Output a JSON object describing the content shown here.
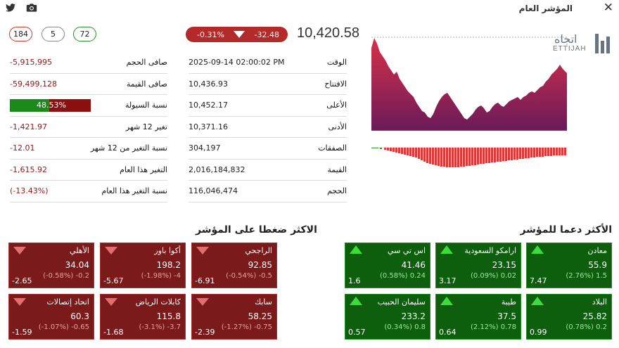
{
  "header": {
    "title": "المؤشر العام"
  },
  "pills": [
    "184",
    "5",
    "72"
  ],
  "summary": {
    "change_pct": "-0.31%",
    "change": "-32.48",
    "price": "10,420.58"
  },
  "details": [
    {
      "label": "الوقت",
      "value": "2025-09-14  02:00:02 PM"
    },
    {
      "label": "الافتتاح",
      "value": "10,436.93"
    },
    {
      "label": "الأعلى",
      "value": "10,452.17"
    },
    {
      "label": "الأدنى",
      "value": "10,371.16"
    },
    {
      "label": "الصفقات",
      "value": "304,197"
    },
    {
      "label": "القيمة",
      "value": "2,016,184,832"
    },
    {
      "label": "الحجم",
      "value": "116,046,474"
    }
  ],
  "stats": [
    {
      "label": "صافى الحجم",
      "value": "-5,915,995"
    },
    {
      "label": "صافى القيمة",
      "value": "-59,499,128"
    },
    {
      "label": "نسبة السيولة",
      "value": "48.53%"
    },
    {
      "label": "تغير 12 شهر",
      "value": "-1,421.97"
    },
    {
      "label": "نسبة التغير من 12 شهر",
      "value": "-12.01"
    },
    {
      "label": "التغير هذا العام",
      "value": "-1,615.92"
    },
    {
      "label": "نسبة التغير هذا العام",
      "value": "(-13.43%)"
    }
  ],
  "liquidity_ratio": 0.4853,
  "logo": {
    "ar": "اتجاه",
    "en": "ETTIJAH"
  },
  "sections": {
    "pressure": "الاكثر ضغطا على المؤشر",
    "support": "الأكثر دعما للمؤشر"
  },
  "pressure": [
    {
      "name": "الراجحي",
      "price": "92.85",
      "pct": "(-0.54%)  -0.5",
      "weight": "-6.91"
    },
    {
      "name": "أكوا باور",
      "price": "198.2",
      "pct": "(-1.98%)  -4",
      "weight": "-5.67"
    },
    {
      "name": "الأهلي",
      "price": "34.04",
      "pct": "(-0.58%)  -0.2",
      "weight": "-2.65"
    },
    {
      "name": "سابك",
      "price": "58.25",
      "pct": "(-1.27%)  -0.75",
      "weight": "-2.39"
    },
    {
      "name": "كابلات الرياض",
      "price": "115.8",
      "pct": "(-3.1%)  -3.7",
      "weight": "-1.68"
    },
    {
      "name": "اتحاد إتصالات",
      "price": "60.3",
      "pct": "(-1.07%)  -0.65",
      "weight": "-1.59"
    }
  ],
  "support": [
    {
      "name": "معادن",
      "price": "55.9",
      "pct": "(2.76%)  1.5",
      "weight": "7.47"
    },
    {
      "name": "ارامكو السعودية",
      "price": "23.15",
      "pct": "(0.09%)  0.02",
      "weight": "3.17"
    },
    {
      "name": "اس تي سي",
      "price": "41.46",
      "pct": "(0.58%)  0.24",
      "weight": "1.6"
    },
    {
      "name": "البلاد",
      "price": "25.82",
      "pct": "(0.78%)  0.2",
      "weight": "0.99"
    },
    {
      "name": "طيبة",
      "price": "37.5",
      "pct": "(2.12%)  0.78",
      "weight": "0.64"
    },
    {
      "name": "سليمان الحبيب",
      "price": "233.2",
      "pct": "(0.34%)  0.8",
      "weight": "0.57"
    }
  ],
  "colors": {
    "down": "#7a1a1a",
    "up": "#0d5e0d",
    "badge": "#b22a2a"
  }
}
